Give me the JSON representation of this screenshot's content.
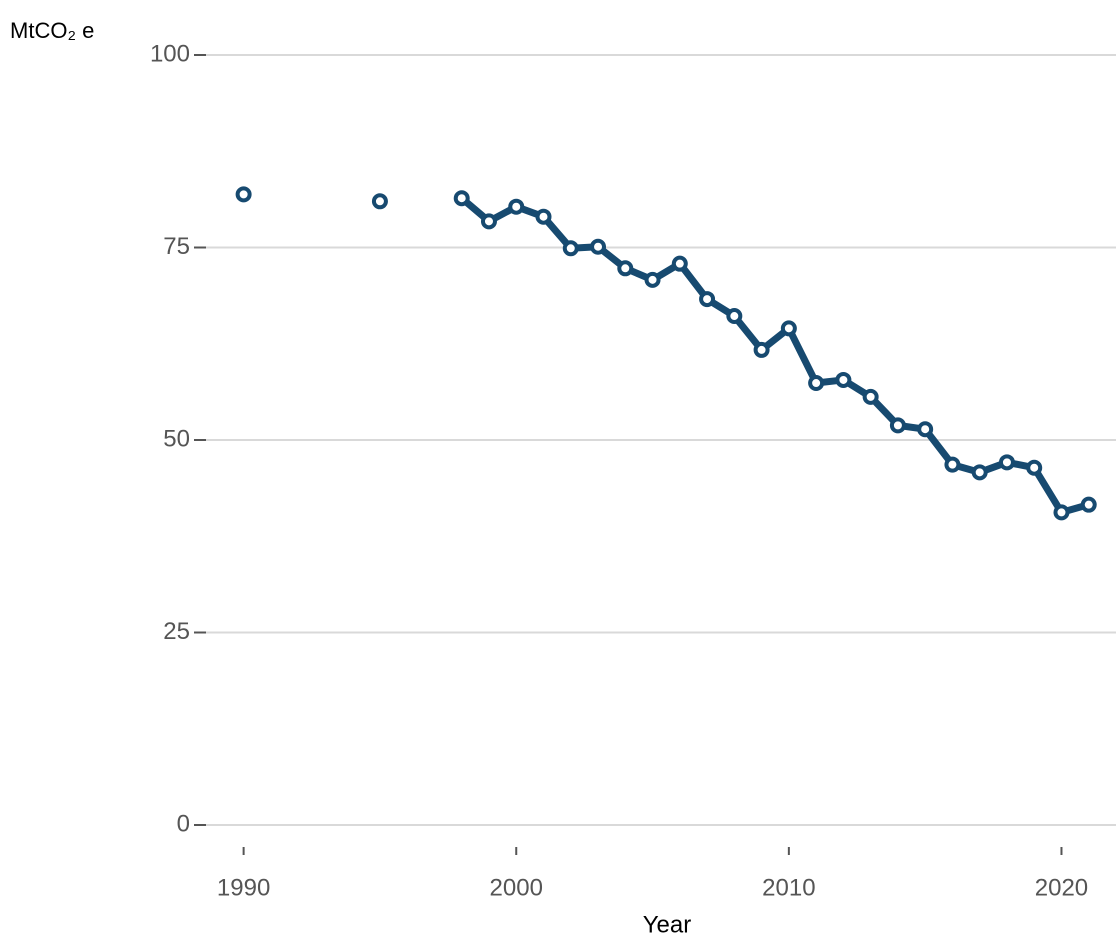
{
  "chart_data": {
    "type": "line",
    "y_label": "MtCO₂ e",
    "x_label": "Year",
    "x": [
      1990,
      1991,
      1992,
      1993,
      1994,
      1995,
      1996,
      1997,
      1998,
      1999,
      2000,
      2001,
      2002,
      2003,
      2004,
      2005,
      2006,
      2007,
      2008,
      2009,
      2010,
      2011,
      2012,
      2013,
      2014,
      2015,
      2016,
      2017,
      2018,
      2019,
      2020,
      2021
    ],
    "values": [
      81.9,
      null,
      null,
      null,
      null,
      81.0,
      null,
      null,
      81.4,
      78.4,
      80.3,
      79.0,
      74.9,
      75.1,
      72.3,
      70.8,
      72.9,
      68.3,
      66.1,
      61.7,
      64.5,
      57.4,
      57.8,
      55.6,
      51.9,
      51.4,
      46.8,
      45.8,
      47.1,
      46.4,
      40.6,
      41.6
    ],
    "color": "#174a70",
    "xlim": [
      1988.4,
      2022
    ],
    "xticks": [
      1990,
      2000,
      2010,
      2020
    ],
    "ylim": [
      0,
      100
    ],
    "yticks": [
      0,
      25,
      50,
      75,
      100
    ],
    "grid": true
  }
}
